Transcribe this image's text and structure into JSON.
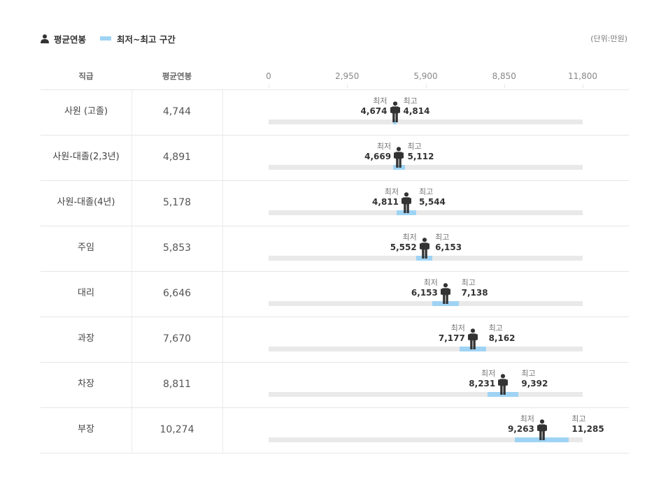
{
  "legend": {
    "avg_label": "평균연봉",
    "range_label": "최저~최고 구간",
    "unit": "(단위:만원)"
  },
  "header": {
    "grade_label": "직급",
    "avg_label": "평균연봉"
  },
  "labels": {
    "min": "최저",
    "max": "최고"
  },
  "colors": {
    "range": "#9fd3f4",
    "track": "#e9e9e9",
    "person": "#333333"
  },
  "chart_data": {
    "type": "bar",
    "xlim": [
      0,
      11800
    ],
    "ticks": [
      0,
      2950,
      5900,
      8850,
      11800
    ],
    "tick_labels": [
      "0",
      "2,950",
      "5,900",
      "8,850",
      "11,800"
    ],
    "rows": [
      {
        "grade": "사원 (고졸)",
        "avg": 4744,
        "avg_label": "4,744",
        "min": 4674,
        "min_label": "4,674",
        "max": 4814,
        "max_label": "4,814"
      },
      {
        "grade": "사원-대졸(2,3년)",
        "avg": 4891,
        "avg_label": "4,891",
        "min": 4669,
        "min_label": "4,669",
        "max": 5112,
        "max_label": "5,112"
      },
      {
        "grade": "사원-대졸(4년)",
        "avg": 5178,
        "avg_label": "5,178",
        "min": 4811,
        "min_label": "4,811",
        "max": 5544,
        "max_label": "5,544"
      },
      {
        "grade": "주임",
        "avg": 5853,
        "avg_label": "5,853",
        "min": 5552,
        "min_label": "5,552",
        "max": 6153,
        "max_label": "6,153"
      },
      {
        "grade": "대리",
        "avg": 6646,
        "avg_label": "6,646",
        "min": 6153,
        "min_label": "6,153",
        "max": 7138,
        "max_label": "7,138"
      },
      {
        "grade": "과장",
        "avg": 7670,
        "avg_label": "7,670",
        "min": 7177,
        "min_label": "7,177",
        "max": 8162,
        "max_label": "8,162"
      },
      {
        "grade": "차장",
        "avg": 8811,
        "avg_label": "8,811",
        "min": 8231,
        "min_label": "8,231",
        "max": 9392,
        "max_label": "9,392"
      },
      {
        "grade": "부장",
        "avg": 10274,
        "avg_label": "10,274",
        "min": 9263,
        "min_label": "9,263",
        "max": 11285,
        "max_label": "11,285"
      }
    ]
  }
}
